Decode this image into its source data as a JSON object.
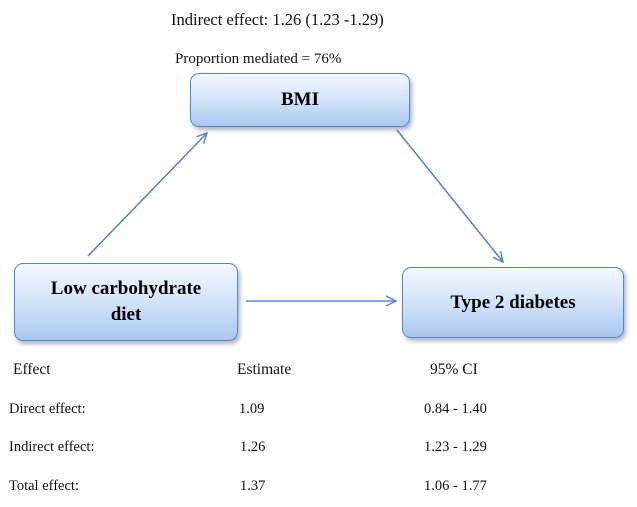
{
  "annotations": {
    "indirect_effect": "Indirect effect: 1.26 (1.23 -1.29)",
    "proportion_mediated": "Proportion mediated = 76%"
  },
  "nodes": {
    "mediator": "BMI",
    "exposure": "Low carbohydrate diet",
    "outcome": "Type 2 diabetes"
  },
  "colors": {
    "node_border": "#5a86c5",
    "node_fill_top": "#f3f8fe",
    "node_fill_bottom": "#a9c7ee",
    "arrow": "#5b87c7"
  },
  "table": {
    "headers": [
      "Effect",
      "Estimate",
      "95% CI"
    ],
    "rows": [
      [
        "Direct effect:",
        "1.09",
        "0.84 - 1.40"
      ],
      [
        "Indirect effect:",
        "1.26",
        "1.23 - 1.29"
      ],
      [
        "Total effect:",
        "1.37",
        "1.06 - 1.77"
      ]
    ]
  }
}
